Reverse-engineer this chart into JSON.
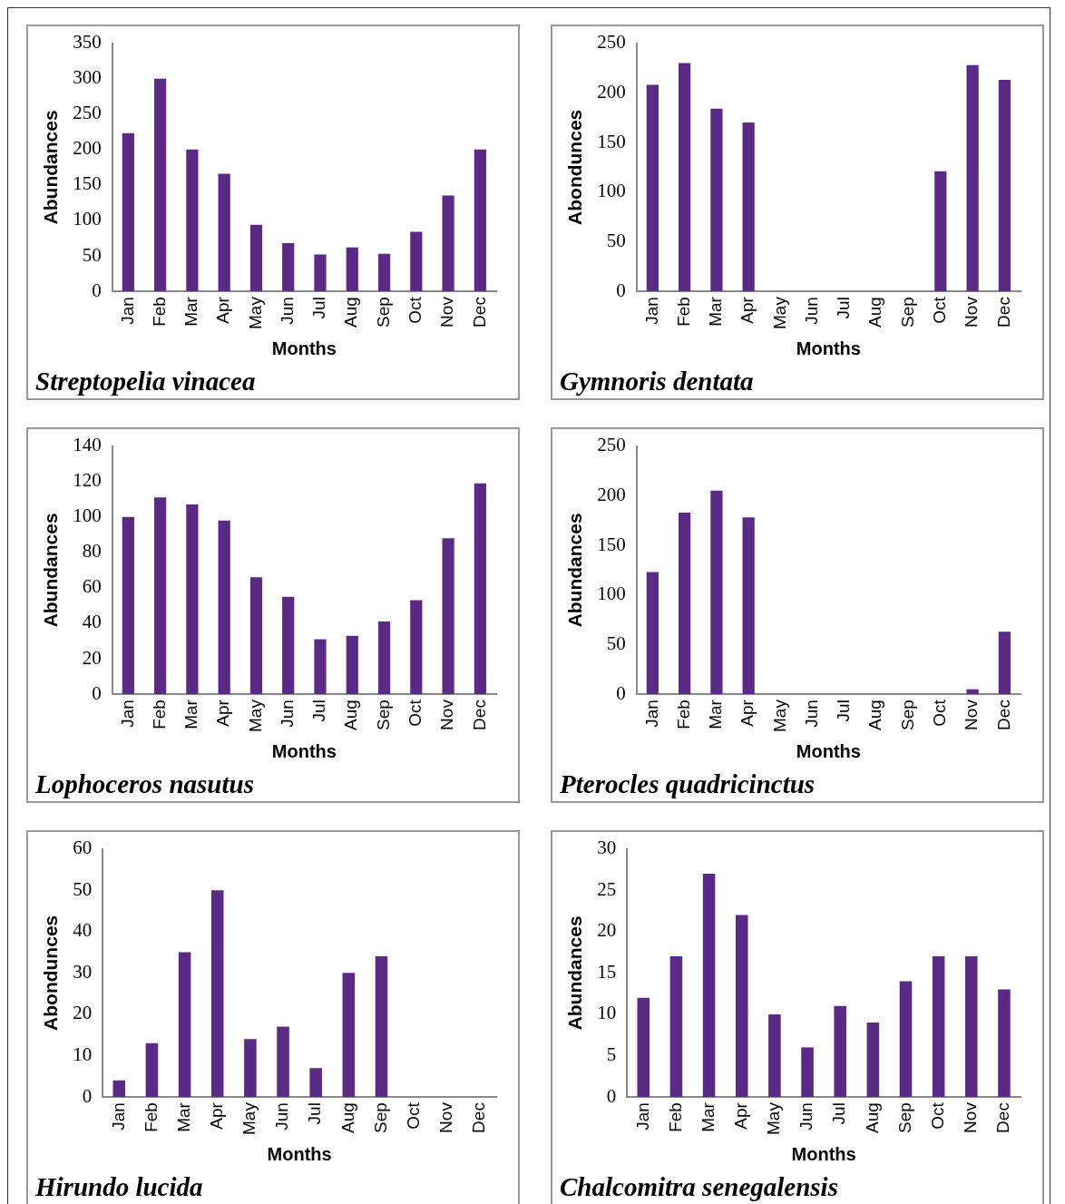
{
  "chart_data": [
    {
      "type": "bar",
      "title": "Streptopelia vinacea",
      "xlabel": "Months",
      "ylabel": "Abundances",
      "categories": [
        "Jan",
        "Feb",
        "Mar",
        "Apr",
        "May",
        "Jun",
        "Jul",
        "Aug",
        "Sep",
        "Oct",
        "Nov",
        "Dec"
      ],
      "values": [
        223,
        300,
        200,
        166,
        94,
        68,
        52,
        62,
        53,
        84,
        135,
        200
      ],
      "color": "#5b2a86",
      "ylim": [
        0,
        350
      ],
      "yticks": [
        0,
        50,
        100,
        150,
        200,
        250,
        300,
        350
      ]
    },
    {
      "type": "bar",
      "title": "Gymnoris dentata",
      "xlabel": "Months",
      "ylabel": "Abondunces",
      "categories": [
        "Jan",
        "Feb",
        "Mar",
        "Apr",
        "May",
        "Jun",
        "Jul",
        "Aug",
        "Sep",
        "Oct",
        "Nov",
        "Dec"
      ],
      "values": [
        208,
        230,
        184,
        170,
        0,
        0,
        0,
        0,
        0,
        121,
        228,
        213
      ],
      "color": "#5b2a86",
      "ylim": [
        0,
        250
      ],
      "yticks": [
        0,
        50,
        100,
        150,
        200,
        250
      ]
    },
    {
      "type": "bar",
      "title": "Lophoceros nasutus",
      "xlabel": "Months",
      "ylabel": "Abundances",
      "categories": [
        "Jan",
        "Feb",
        "Mar",
        "Apr",
        "May",
        "Jun",
        "Jul",
        "Aug",
        "Sep",
        "Oct",
        "Nov",
        "Dec"
      ],
      "values": [
        100,
        111,
        107,
        98,
        66,
        55,
        31,
        33,
        41,
        53,
        88,
        119
      ],
      "color": "#5b2a86",
      "ylim": [
        0,
        140
      ],
      "yticks": [
        0,
        20,
        40,
        60,
        80,
        100,
        120,
        140
      ]
    },
    {
      "type": "bar",
      "title": "Pterocles quadricinctus",
      "xlabel": "Months",
      "ylabel": "Abundances",
      "categories": [
        "Jan",
        "Feb",
        "Mar",
        "Apr",
        "May",
        "Jun",
        "Jul",
        "Aug",
        "Sep",
        "Oct",
        "Nov",
        "Dec"
      ],
      "values": [
        123,
        183,
        205,
        178,
        0,
        0,
        0,
        0,
        0,
        0,
        5,
        63
      ],
      "color": "#5b2a86",
      "ylim": [
        0,
        250
      ],
      "yticks": [
        0,
        50,
        100,
        150,
        200,
        250
      ]
    },
    {
      "type": "bar",
      "title": "Hirundo lucida",
      "xlabel": "Months",
      "ylabel": "Abondunces",
      "categories": [
        "Jan",
        "Feb",
        "Mar",
        "Apr",
        "May",
        "Jun",
        "Jul",
        "Aug",
        "Sep",
        "Oct",
        "Nov",
        "Dec"
      ],
      "values": [
        4,
        13,
        35,
        50,
        14,
        17,
        7,
        30,
        34,
        0,
        0,
        0
      ],
      "color": "#5b2a86",
      "ylim": [
        0,
        60
      ],
      "yticks": [
        0,
        10,
        20,
        30,
        40,
        50,
        60
      ]
    },
    {
      "type": "bar",
      "title": "Chalcomitra senegalensis",
      "xlabel": "Months",
      "ylabel": "Abundances",
      "categories": [
        "Jan",
        "Feb",
        "Mar",
        "Apr",
        "May",
        "Jun",
        "Jul",
        "Aug",
        "Sep",
        "Oct",
        "Nov",
        "Dec"
      ],
      "values": [
        12,
        17,
        27,
        22,
        10,
        6,
        11,
        9,
        14,
        17,
        17,
        13
      ],
      "color": "#5b2a86",
      "ylim": [
        0,
        30
      ],
      "yticks": [
        0,
        5,
        10,
        15,
        20,
        25,
        30
      ]
    }
  ]
}
